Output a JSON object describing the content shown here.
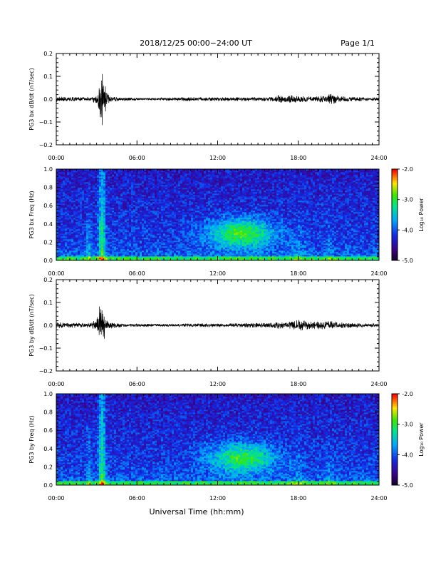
{
  "header": {
    "date_range": "2018/12/25  00:00−24:00 UT",
    "page": "Page 1/1"
  },
  "footer": {
    "xlabel": "Universal Time (hh:mm)"
  },
  "colors": {
    "spectrogram_low": "#000000",
    "spectrogram_mid": "#00c8ff",
    "spectrogram_high": "#ff0000",
    "trace": "#000000"
  },
  "chart_data": [
    {
      "type": "line",
      "ylabel": "PG3 bx dB/dt (nT/sec)",
      "xlim": [
        0,
        24
      ],
      "ylim": [
        -0.2,
        0.2
      ],
      "xticks": [
        "00:00",
        "06:00",
        "12:00",
        "18:00",
        "24:00"
      ],
      "yticks": [
        "0.2",
        "0.1",
        "0.0",
        "−0.1",
        "−0.2"
      ],
      "series": [
        {
          "x": [
            0,
            0.5,
            1,
            1.5,
            2,
            2.5,
            3,
            3.25,
            3.4,
            3.5,
            3.6,
            3.75,
            4,
            4.5,
            5,
            6,
            7,
            8,
            9,
            10,
            11,
            12,
            13,
            14,
            15,
            16,
            16.5,
            17,
            17.5,
            18,
            19,
            20,
            20.5,
            21,
            22,
            23,
            24
          ],
          "amplitude": [
            0.012,
            0.01,
            0.009,
            0.01,
            0.009,
            0.01,
            0.02,
            0.06,
            0.09,
            0.07,
            0.05,
            0.03,
            0.015,
            0.01,
            0.008,
            0.006,
            0.005,
            0.006,
            0.008,
            0.009,
            0.008,
            0.009,
            0.008,
            0.009,
            0.009,
            0.01,
            0.02,
            0.012,
            0.018,
            0.014,
            0.012,
            0.016,
            0.025,
            0.013,
            0.01,
            0.008,
            0.007
          ]
        }
      ]
    },
    {
      "type": "heatmap",
      "ylabel": "PG3 bx Freq (Hz)",
      "xlim": [
        0,
        24
      ],
      "ylim": [
        0,
        1
      ],
      "xticks": [
        "00:00",
        "06:00",
        "12:00",
        "18:00",
        "24:00"
      ],
      "yticks": [
        "1.0",
        "0.8",
        "0.6",
        "0.4",
        "0.2",
        "0.0"
      ],
      "colorbar": {
        "label": "Log₁₀ Power",
        "range": [
          -5.0,
          -2.0
        ],
        "ticks": [
          "-2.0",
          "-3.0",
          "-4.0",
          "-5.0"
        ]
      }
    },
    {
      "type": "line",
      "ylabel": "PG3 by dB/dt (nT/sec)",
      "xlim": [
        0,
        24
      ],
      "ylim": [
        -0.2,
        0.2
      ],
      "xticks": [
        "00:00",
        "06:00",
        "12:00",
        "18:00",
        "24:00"
      ],
      "yticks": [
        "0.2",
        "0.1",
        "0.0",
        "−0.1",
        "−0.2"
      ],
      "series": [
        {
          "x": [
            0,
            0.5,
            1,
            1.5,
            2,
            2.5,
            3,
            3.25,
            3.4,
            3.5,
            3.6,
            3.75,
            4,
            4.5,
            5,
            6,
            7,
            8,
            9,
            10,
            11,
            12,
            13,
            14,
            15,
            16,
            16.5,
            17,
            17.5,
            18,
            19,
            20,
            20.5,
            21,
            22,
            23,
            24
          ],
          "amplitude": [
            0.015,
            0.012,
            0.01,
            0.011,
            0.01,
            0.01,
            0.025,
            0.07,
            0.09,
            0.06,
            0.04,
            0.025,
            0.015,
            0.01,
            0.008,
            0.007,
            0.006,
            0.006,
            0.007,
            0.008,
            0.008,
            0.008,
            0.008,
            0.01,
            0.01,
            0.011,
            0.016,
            0.012,
            0.018,
            0.025,
            0.016,
            0.018,
            0.02,
            0.013,
            0.011,
            0.009,
            0.008
          ]
        }
      ]
    },
    {
      "type": "heatmap",
      "ylabel": "PG3 by Freq (Hz)",
      "xlim": [
        0,
        24
      ],
      "ylim": [
        0,
        1
      ],
      "xticks": [
        "00:00",
        "06:00",
        "12:00",
        "18:00",
        "24:00"
      ],
      "yticks": [
        "1.0",
        "0.8",
        "0.6",
        "0.4",
        "0.2",
        "0.0"
      ],
      "colorbar": {
        "label": "Log₁₀ Power",
        "range": [
          -5.0,
          -2.0
        ],
        "ticks": [
          "-2.0",
          "-3.0",
          "-4.0",
          "-5.0"
        ]
      }
    }
  ]
}
